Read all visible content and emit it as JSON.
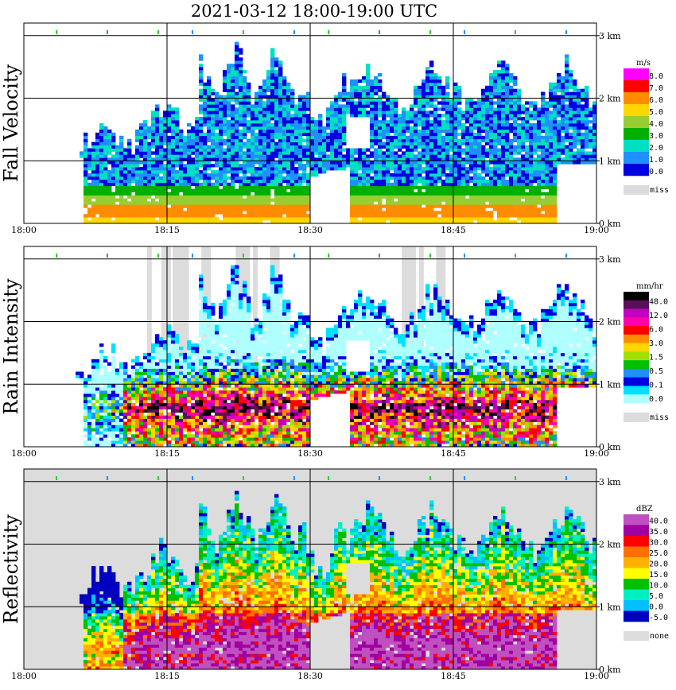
{
  "title": "2021-03-12   18:00-19:00 UTC",
  "chart_data": [
    {
      "type": "heatmap",
      "ylabel": "Fall Velocity",
      "xticks": [
        "18:00",
        "18:15",
        "18:30",
        "18:45",
        "19:00"
      ],
      "yticks": [
        "0 km",
        "1 km",
        "2 km",
        "3 km"
      ],
      "xlim": [
        "18:00",
        "19:00"
      ],
      "ylim": [
        0,
        3.2
      ],
      "grid": true,
      "colorbar": {
        "unit": "m/s",
        "labels": [
          "8.0",
          "7.0",
          "6.0",
          "5.0",
          "4.0",
          "3.0",
          "2.0",
          "1.0",
          "0.0"
        ],
        "colors": [
          "#ff00ff",
          "#ff0000",
          "#ff8c00",
          "#ffd700",
          "#9acd32",
          "#00b000",
          "#00e0c0",
          "#1e90ff",
          "#0000e0"
        ],
        "missing_label": "miss",
        "missing_color": "#dcdcdc"
      }
    },
    {
      "type": "heatmap",
      "ylabel": "Rain Intensity",
      "xticks": [
        "18:00",
        "18:15",
        "18:30",
        "18:45",
        "19:00"
      ],
      "yticks": [
        "0 km",
        "1 km",
        "2 km",
        "3 km"
      ],
      "xlim": [
        "18:00",
        "19:00"
      ],
      "ylim": [
        0,
        3.2
      ],
      "grid": true,
      "colorbar": {
        "unit": "mm/hr",
        "labels": [
          "48.0",
          "12.0",
          "6.0",
          "3.0",
          "1.5",
          "0.5",
          "0.1",
          "0.0"
        ],
        "colors": [
          "#000000",
          "#5a0f5a",
          "#c000c0",
          "#ff00aa",
          "#ff0000",
          "#ff8c00",
          "#ffd700",
          "#a0e000",
          "#00c000",
          "#1e90ff",
          "#0000e0",
          "#00e0ff",
          "#b0ffff"
        ],
        "missing_label": "miss",
        "missing_color": "#dcdcdc"
      }
    },
    {
      "type": "heatmap",
      "ylabel": "Reflectivity",
      "xticks": [
        "18:00",
        "18:15",
        "18:30",
        "18:45",
        "19:00"
      ],
      "yticks": [
        "0 km",
        "1 km",
        "2 km",
        "3 km"
      ],
      "xlim": [
        "18:00",
        "19:00"
      ],
      "ylim": [
        0,
        3.2
      ],
      "grid": true,
      "colorbar": {
        "unit": "dBZ",
        "labels": [
          "40.0",
          "35.0",
          "30.0",
          "25.0",
          "20.0",
          "15.0",
          "10.0",
          "5.0",
          "0.0",
          "-5.0"
        ],
        "colors": [
          "#c050c0",
          "#a000a0",
          "#ff0000",
          "#ff7000",
          "#ffb000",
          "#ffff00",
          "#00c000",
          "#00f0c0",
          "#00c0ff",
          "#0000c0"
        ],
        "missing_label": "none",
        "missing_color": "#dcdcdc"
      }
    }
  ]
}
